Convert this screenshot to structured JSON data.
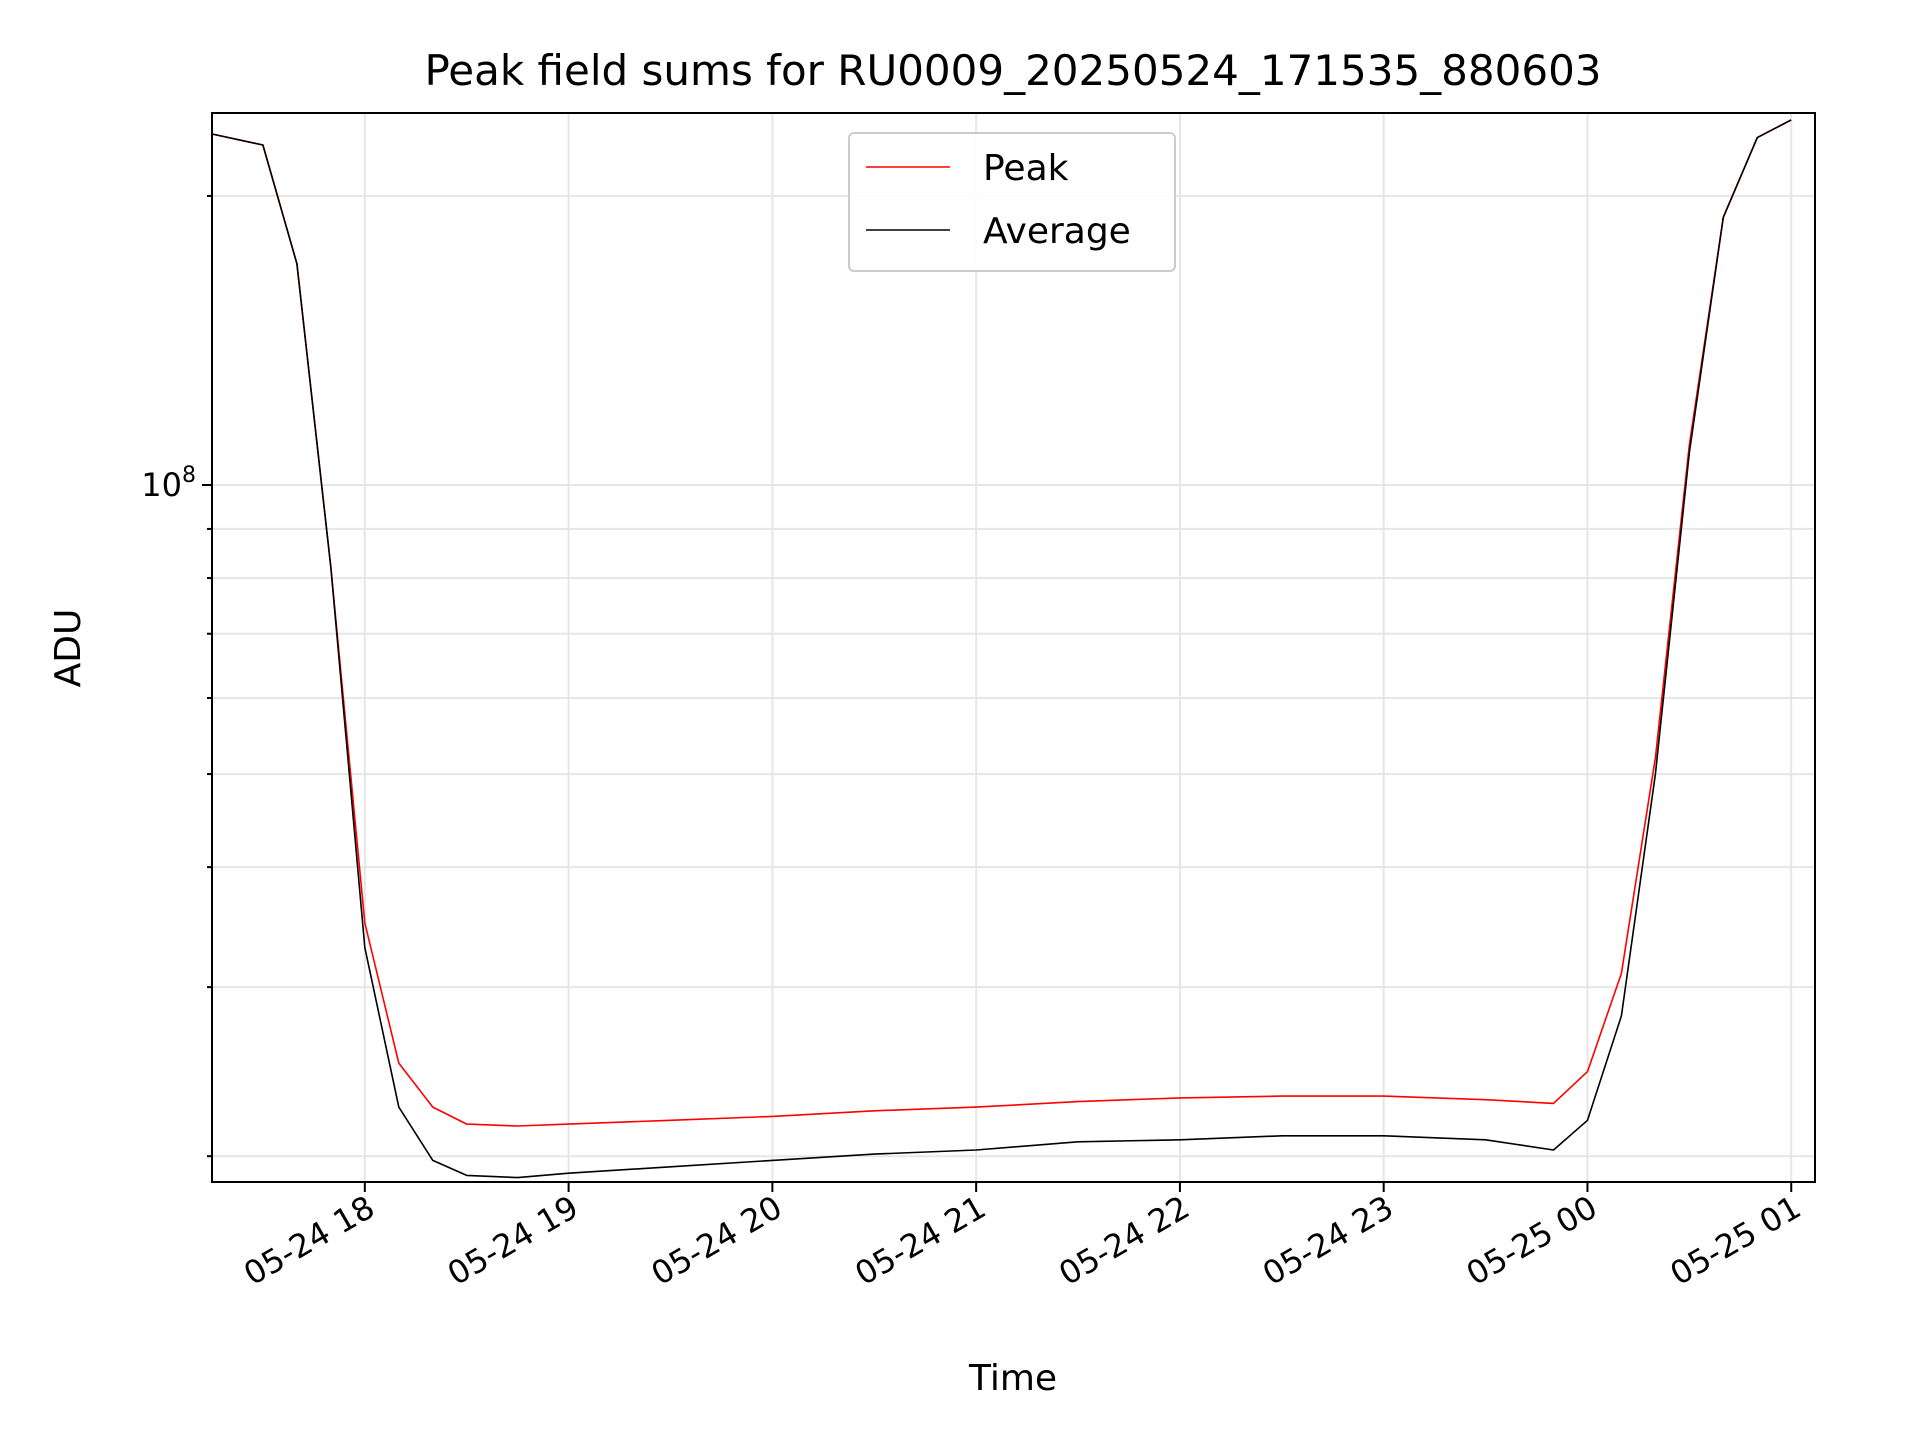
{
  "chart_data": {
    "type": "line",
    "title": "Peak field sums for RU0009_20250524_171535_880603",
    "xlabel": "Time",
    "ylabel": "ADU",
    "yscale": "log",
    "grid": true,
    "legend_position": "top-center",
    "xlim": [
      "2025-05-24 17:15",
      "2025-05-25 01:07"
    ],
    "ylim": [
      18800000,
      244000000
    ],
    "x_ticks": [
      "05-24 18",
      "05-24 19",
      "05-24 20",
      "05-24 21",
      "05-24 22",
      "05-24 23",
      "05-25 00",
      "05-25 01"
    ],
    "y_tick_labels": [
      {
        "base": "10",
        "exponent": "8"
      }
    ],
    "series": [
      {
        "name": "Peak",
        "color": "#ff0000",
        "x": [
          "2025-05-24 17:15",
          "2025-05-24 17:30",
          "2025-05-24 17:40",
          "2025-05-24 17:50",
          "2025-05-24 18:00",
          "2025-05-24 18:10",
          "2025-05-24 18:20",
          "2025-05-24 18:30",
          "2025-05-24 18:45",
          "2025-05-24 19:00",
          "2025-05-24 19:30",
          "2025-05-24 20:00",
          "2025-05-24 20:30",
          "2025-05-24 21:00",
          "2025-05-24 21:30",
          "2025-05-24 22:00",
          "2025-05-24 22:30",
          "2025-05-24 23:00",
          "2025-05-24 23:30",
          "2025-05-24 23:50",
          "2025-05-25 00:00",
          "2025-05-25 00:10",
          "2025-05-25 00:20",
          "2025-05-25 00:30",
          "2025-05-25 00:40",
          "2025-05-25 00:50",
          "2025-05-25 01:00"
        ],
        "values": [
          232000000,
          226000000,
          170000000,
          82000000,
          35000000,
          25000000,
          22500000,
          21600000,
          21500000,
          21600000,
          21800000,
          22000000,
          22300000,
          22500000,
          22800000,
          23000000,
          23100000,
          23100000,
          22900000,
          22700000,
          24500000,
          31000000,
          52000000,
          110000000,
          190000000,
          230000000,
          240000000
        ]
      },
      {
        "name": "Average",
        "color": "#000000",
        "x": [
          "2025-05-24 17:15",
          "2025-05-24 17:30",
          "2025-05-24 17:40",
          "2025-05-24 17:50",
          "2025-05-24 18:00",
          "2025-05-24 18:10",
          "2025-05-24 18:20",
          "2025-05-24 18:30",
          "2025-05-24 18:45",
          "2025-05-24 19:00",
          "2025-05-24 19:30",
          "2025-05-24 20:00",
          "2025-05-24 20:30",
          "2025-05-24 21:00",
          "2025-05-24 21:30",
          "2025-05-24 22:00",
          "2025-05-24 22:30",
          "2025-05-24 23:00",
          "2025-05-24 23:30",
          "2025-05-24 23:50",
          "2025-05-25 00:00",
          "2025-05-25 00:10",
          "2025-05-25 00:20",
          "2025-05-25 00:30",
          "2025-05-25 00:40",
          "2025-05-25 00:50",
          "2025-05-25 01:00"
        ],
        "values": [
          232000000,
          226000000,
          170000000,
          82000000,
          33000000,
          22500000,
          19800000,
          19100000,
          19000000,
          19200000,
          19500000,
          19800000,
          20100000,
          20300000,
          20700000,
          20800000,
          21000000,
          21000000,
          20800000,
          20300000,
          21800000,
          28000000,
          50000000,
          108000000,
          190000000,
          230000000,
          240000000
        ]
      }
    ]
  }
}
